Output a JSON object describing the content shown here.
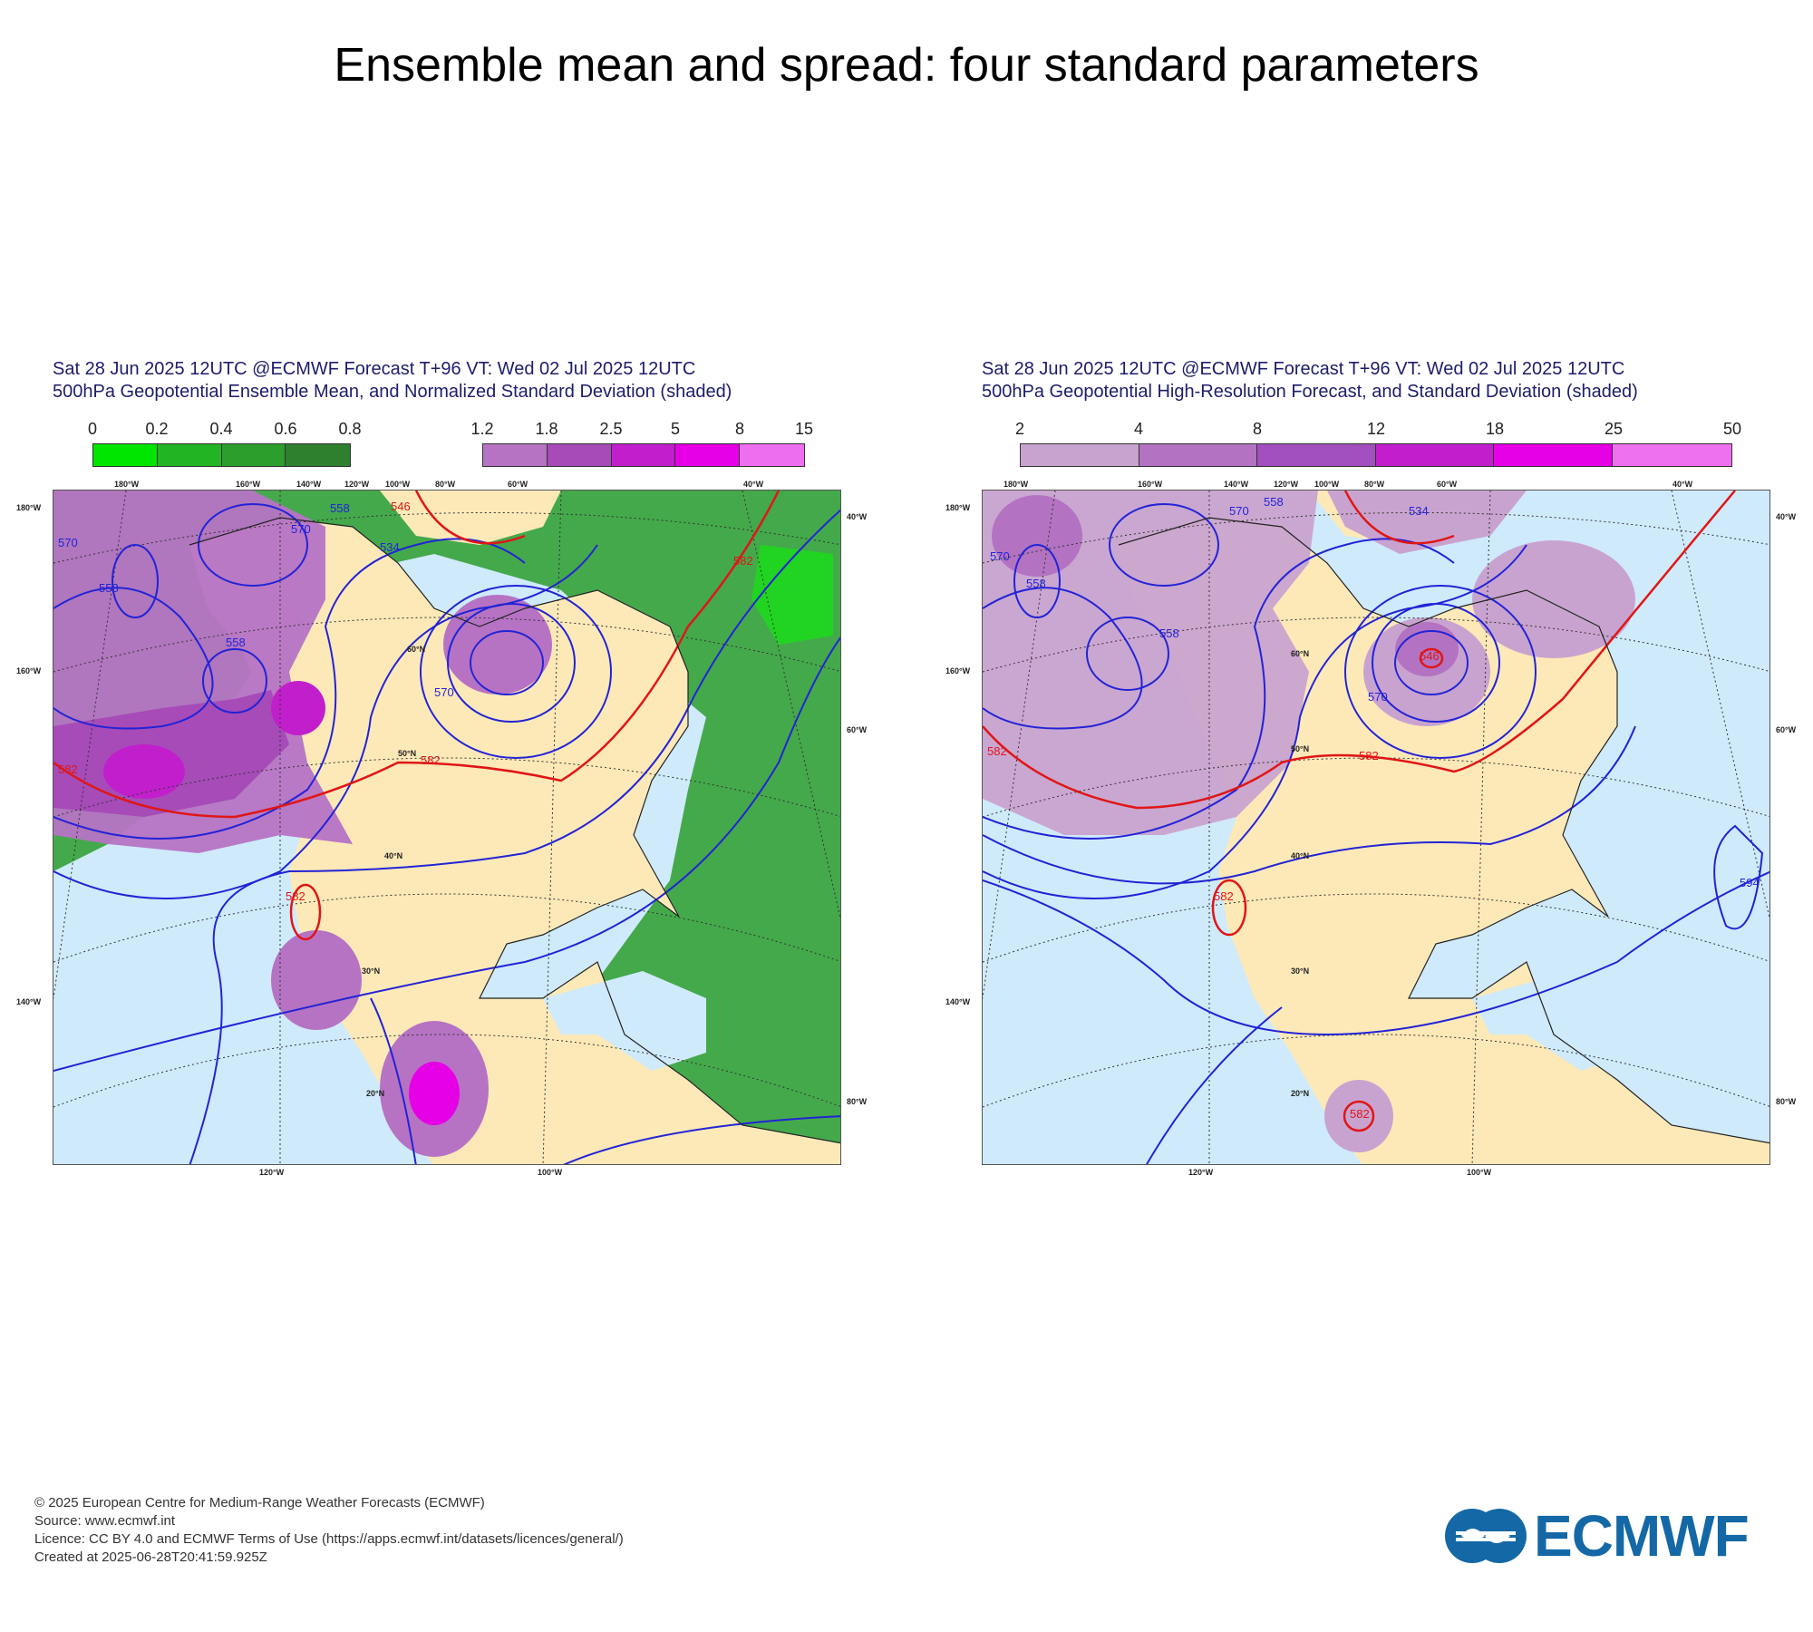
{
  "page_title": "Ensemble mean and spread: four standard parameters",
  "panels": [
    {
      "title_line1": "Sat 28 Jun 2025 12UTC @ECMWF Forecast T+96 VT: Wed 02 Jul 2025 12UTC",
      "title_line2": "500hPa Geopotential Ensemble Mean, and Normalized Standard Deviation (shaded)",
      "legend_green": {
        "labels": [
          "0",
          "0.2",
          "0.4",
          "0.6",
          "0.8"
        ],
        "colors": [
          "#00e600",
          "#22b422",
          "#2b9e2b",
          "#2e7f2e"
        ]
      },
      "legend_purple": {
        "labels": [
          "1.2",
          "1.8",
          "2.5",
          "5",
          "8",
          "15"
        ],
        "colors": [
          "#b673c4",
          "#a64bb8",
          "#c21fcc",
          "#e600e6",
          "#ee6ef0"
        ]
      },
      "contour_labels": [
        "570",
        "558",
        "558",
        "570",
        "558",
        "546",
        "534",
        "570",
        "582",
        "582",
        "582",
        "582"
      ],
      "lon_labels_top": [
        "180°W",
        "160°W",
        "140°W",
        "120°W",
        "100°W",
        "80°W",
        "60°W",
        "40°W"
      ],
      "lon_labels_bottom": [
        "120°W",
        "100°W"
      ],
      "lat_labels": [
        "60°N",
        "50°N",
        "40°N",
        "30°N",
        "20°N"
      ],
      "edge_labels_left": [
        "180°W",
        "160°W",
        "140°W"
      ],
      "edge_labels_right": [
        "40°W",
        "60°W",
        "80°W"
      ]
    },
    {
      "title_line1": "Sat 28 Jun 2025 12UTC @ECMWF Forecast T+96 VT: Wed 02 Jul 2025 12UTC",
      "title_line2": "500hPa Geopotential High-Resolution Forecast, and Standard Deviation (shaded)",
      "legend": {
        "labels": [
          "2",
          "4",
          "8",
          "12",
          "18",
          "25",
          "50"
        ],
        "colors": [
          "#c9a3cf",
          "#b373c2",
          "#a24fbf",
          "#c21fcc",
          "#e600e6",
          "#ee72ef"
        ]
      },
      "contour_labels": [
        "570",
        "558",
        "558",
        "570",
        "558",
        "546",
        "534",
        "570",
        "582",
        "582",
        "582",
        "582",
        "594"
      ],
      "lon_labels_top": [
        "180°W",
        "160°W",
        "140°W",
        "120°W",
        "100°W",
        "80°W",
        "60°W",
        "40°W"
      ],
      "lon_labels_bottom": [
        "120°W",
        "100°W"
      ],
      "lat_labels": [
        "60°N",
        "50°N",
        "40°N",
        "30°N",
        "20°N"
      ],
      "edge_labels_left": [
        "180°W",
        "160°W",
        "140°W"
      ],
      "edge_labels_right": [
        "40°W",
        "60°W",
        "80°W"
      ]
    }
  ],
  "colors": {
    "ocean": "#cfeafb",
    "land": "#fde9b8",
    "contour_blue": "#2323d6",
    "contour_red": "#e01616"
  },
  "footer": {
    "line1": "© 2025 European Centre for Medium-Range Weather Forecasts (ECMWF)",
    "line2": "Source: www.ecmwf.int",
    "line3": "Licence: CC BY 4.0 and ECMWF Terms of Use (https://apps.ecmwf.int/datasets/licences/general/)",
    "line4": "Created at 2025-06-28T20:41:59.925Z"
  },
  "logo": {
    "text": "ECMWF",
    "icon": "ecmwf-logo-icon"
  }
}
